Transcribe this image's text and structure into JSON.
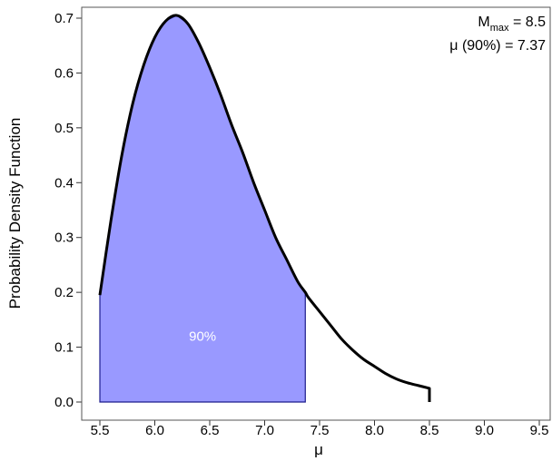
{
  "chart_data": {
    "type": "area",
    "xlabel": "μ",
    "ylabel": "Probability Density Function",
    "xlim": [
      5.5,
      9.5
    ],
    "ylim": [
      0.0,
      0.7
    ],
    "xticks": [
      "5.5",
      "6.0",
      "6.5",
      "7.0",
      "7.5",
      "8.0",
      "8.5",
      "9.0",
      "9.5"
    ],
    "yticks": [
      "0.0",
      "0.1",
      "0.2",
      "0.3",
      "0.4",
      "0.5",
      "0.6",
      "0.7"
    ],
    "grid": false,
    "series": [
      {
        "x": [
          5.5,
          5.6,
          5.7,
          5.8,
          5.9,
          6.0,
          6.1,
          6.2,
          6.3,
          6.4,
          6.5,
          6.6,
          6.7,
          6.8,
          6.9,
          7.0,
          7.1,
          7.2,
          7.3,
          7.37,
          7.4,
          7.5,
          7.6,
          7.7,
          7.8,
          7.9,
          8.0,
          8.1,
          8.2,
          8.3,
          8.4,
          8.5
        ],
        "y": [
          0.195,
          0.33,
          0.45,
          0.545,
          0.615,
          0.665,
          0.695,
          0.705,
          0.69,
          0.655,
          0.61,
          0.56,
          0.505,
          0.455,
          0.4,
          0.35,
          0.3,
          0.26,
          0.22,
          0.2,
          0.19,
          0.165,
          0.14,
          0.115,
          0.095,
          0.078,
          0.065,
          0.052,
          0.042,
          0.035,
          0.03,
          0.025
        ]
      }
    ],
    "shaded_region": {
      "from": 5.5,
      "to": 7.37,
      "label": "90%",
      "color": "#9999ff",
      "edge_color": "#1c1c8c"
    },
    "line_color": "#000000",
    "annotation": {
      "line1_main": "M",
      "line1_sub": "max",
      "line1_rest": " = 8.5",
      "line2": "μ (90%) = 7.37"
    }
  }
}
